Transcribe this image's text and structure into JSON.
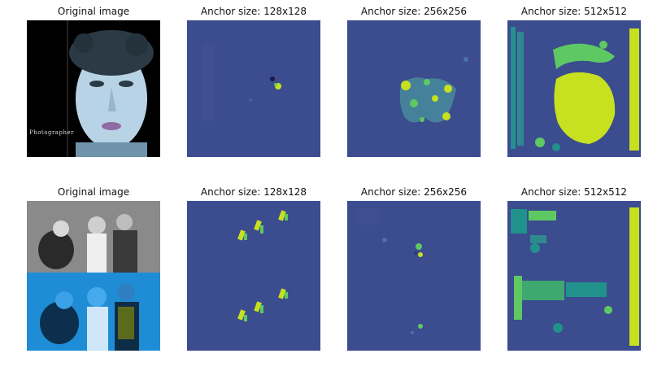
{
  "figure": {
    "rows": [
      {
        "panels": [
          {
            "title": "Original image",
            "kind": "photo-portrait",
            "caption": "Photographer"
          },
          {
            "title": "Anchor size: 128x128",
            "kind": "heatmap",
            "variant": "r1-128"
          },
          {
            "title": "Anchor size: 256x256",
            "kind": "heatmap",
            "variant": "r1-256"
          },
          {
            "title": "Anchor size: 512x512",
            "kind": "heatmap",
            "variant": "r1-512"
          }
        ]
      },
      {
        "panels": [
          {
            "title": "Original image",
            "kind": "photo-group"
          },
          {
            "title": "Anchor size: 128x128",
            "kind": "heatmap",
            "variant": "r2-128"
          },
          {
            "title": "Anchor size: 256x256",
            "kind": "heatmap",
            "variant": "r2-256"
          },
          {
            "title": "Anchor size: 512x512",
            "kind": "heatmap",
            "variant": "r2-512"
          }
        ]
      }
    ]
  },
  "colors": {
    "viridis_dark": "#440154",
    "viridis_base": "#3b4c8f",
    "viridis_teal": "#21918c",
    "viridis_green": "#5ec962",
    "viridis_yellow": "#c7e020",
    "photo_blue": "#4aa6dc",
    "photo_dark": "#0a0f14"
  }
}
